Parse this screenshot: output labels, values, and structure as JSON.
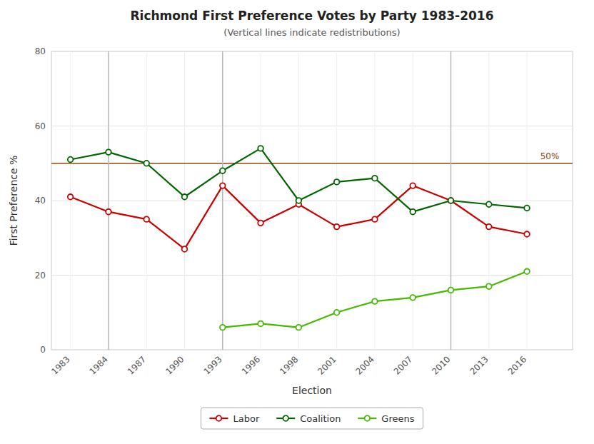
{
  "chart_data": {
    "type": "line",
    "title": "Richmond First Preference Votes by Party 1983-2016",
    "subtitle": "(Vertical lines indicate redistributions)",
    "xlabel": "Election",
    "ylabel": "First Preference %",
    "categories": [
      "1983",
      "1984",
      "1987",
      "1990",
      "1993",
      "1996",
      "1998",
      "2001",
      "2004",
      "2007",
      "2010",
      "2013",
      "2016"
    ],
    "series": [
      {
        "name": "Labor",
        "color": "#cc0000",
        "values": [
          41,
          37,
          35,
          27,
          44,
          34,
          39,
          33,
          35,
          44,
          40,
          33,
          31
        ]
      },
      {
        "name": "Coalition",
        "color": "#006600",
        "values": [
          51,
          53,
          50,
          41,
          48,
          54,
          40,
          45,
          46,
          37,
          40,
          39,
          38
        ]
      },
      {
        "name": "Greens",
        "color": "#44bb00",
        "values": [
          null,
          null,
          null,
          null,
          6,
          7,
          6,
          10,
          13,
          14,
          16,
          17,
          21
        ]
      }
    ],
    "annotations": [
      {
        "type": "hline",
        "y": 50,
        "label": "50%",
        "color": "#8B4513"
      },
      {
        "type": "vline",
        "x": "1984"
      },
      {
        "type": "vline",
        "x": "1993"
      },
      {
        "type": "vline",
        "x": "2010"
      }
    ],
    "ylim": [
      0,
      80
    ],
    "yticks": [
      0,
      20,
      40,
      60,
      80
    ],
    "grid": true,
    "legend": "bottom",
    "marker": "circle"
  }
}
